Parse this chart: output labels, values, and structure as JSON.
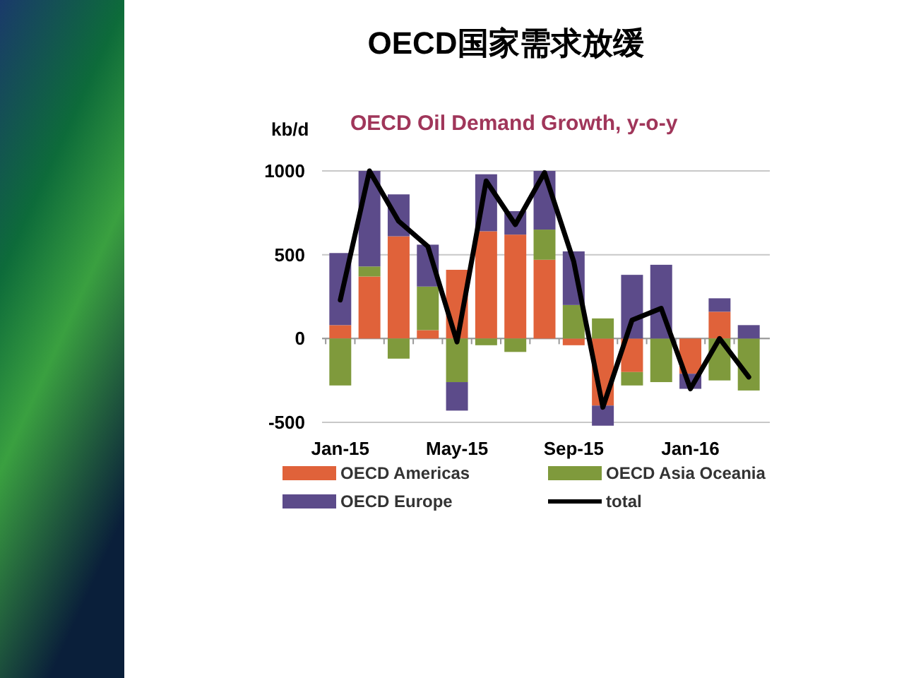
{
  "chart_data": {
    "type": "bar",
    "title": "OECD国家需求放缓",
    "subtitle": "OECD Oil Demand Growth, y-o-y",
    "ylabel": "kb/d",
    "categories": [
      "Jan-15",
      null,
      null,
      null,
      "May-15",
      null,
      null,
      null,
      "Sep-15",
      null,
      null,
      null,
      "Jan-16",
      null,
      null
    ],
    "stacked": true,
    "ylim": [
      -500,
      1000
    ],
    "yticks": [
      -500,
      0,
      500,
      1000
    ],
    "grid": "y",
    "legend": "bottom",
    "series": [
      {
        "name": "OECD Americas",
        "color": "#e0623a",
        "values": [
          80,
          370,
          610,
          50,
          410,
          640,
          620,
          470,
          -40,
          -400,
          -200,
          0,
          -210,
          160,
          0
        ]
      },
      {
        "name": "OECD Asia Oceania",
        "color": "#7f9a3c",
        "values": [
          -280,
          60,
          -120,
          260,
          -260,
          -40,
          -80,
          180,
          200,
          120,
          -80,
          -260,
          0,
          -250,
          -310
        ]
      },
      {
        "name": "OECD Europe",
        "color": "#5c4b8a",
        "values": [
          430,
          570,
          250,
          250,
          -170,
          340,
          140,
          350,
          320,
          -120,
          380,
          440,
          -90,
          80,
          80
        ]
      },
      {
        "name": "total",
        "type": "line",
        "color": "#000000",
        "values": [
          230,
          1000,
          700,
          550,
          -20,
          940,
          680,
          990,
          460,
          -410,
          110,
          180,
          -300,
          0,
          -230
        ]
      }
    ]
  }
}
